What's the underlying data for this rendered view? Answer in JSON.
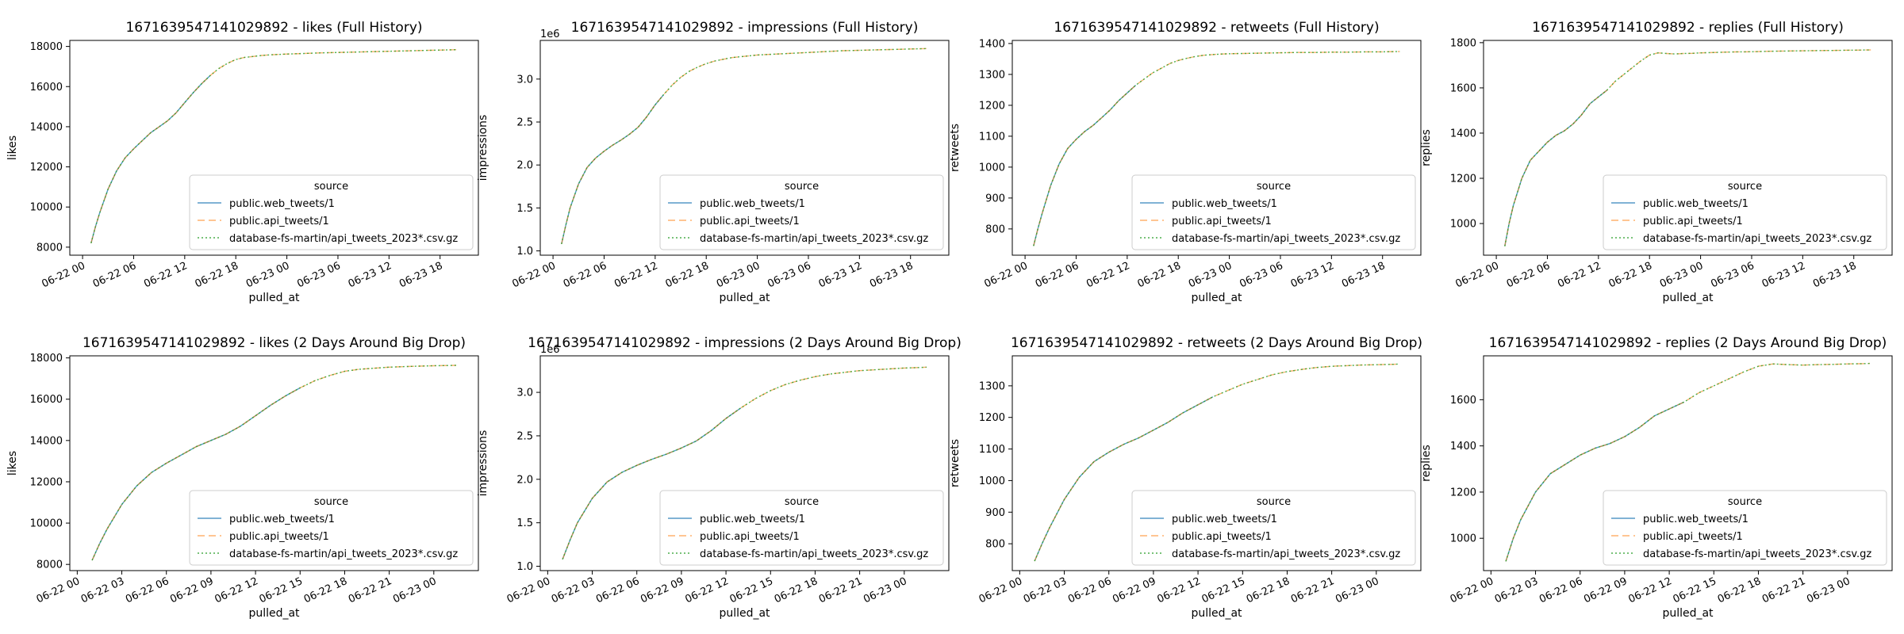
{
  "colors": {
    "web": "#1f77b4",
    "api": "#ff7f0e",
    "db": "#2ca02c"
  },
  "chart_data": [
    {
      "type": "line",
      "title": "1671639547141029892 - likes (Full History)",
      "xlabel": "pulled_at",
      "ylabel": "likes",
      "xticks": [
        "06-22 00",
        "06-22 06",
        "06-22 12",
        "06-22 18",
        "06-23 00",
        "06-23 06",
        "06-23 12",
        "06-23 18"
      ],
      "xlim": [
        -1.5,
        46.5
      ],
      "yticks": [
        8000,
        10000,
        12000,
        14000,
        16000,
        18000
      ],
      "ylim": [
        7600,
        18300
      ],
      "y_offset": "",
      "legend_title": "source",
      "legend_position": "lower right",
      "legend": [
        "public.web_tweets/1",
        "public.api_tweets/1",
        "database-fs-martin/api_tweets_2023*.csv.gz"
      ],
      "x": [
        1.0,
        1.5,
        2,
        3,
        4,
        5,
        6,
        7,
        8,
        9,
        10,
        11,
        12,
        13,
        14,
        15,
        16,
        17,
        18,
        19,
        20,
        21,
        22,
        23,
        24,
        26,
        28,
        30,
        32,
        34,
        36,
        38,
        40,
        42,
        44
      ],
      "values": [
        8200,
        9000,
        9700,
        10900,
        11800,
        12450,
        12900,
        13300,
        13700,
        14000,
        14300,
        14700,
        15200,
        15700,
        16150,
        16550,
        16900,
        17150,
        17350,
        17450,
        17500,
        17550,
        17580,
        17600,
        17620,
        17650,
        17680,
        17700,
        17720,
        17740,
        17760,
        17780,
        17800,
        17820,
        17840
      ],
      "series": [
        {
          "name": "public.web_tweets/1",
          "until": 15
        },
        {
          "name": "public.api_tweets/1",
          "until": 44
        },
        {
          "name": "database-fs-martin/api_tweets_2023*.csv.gz",
          "until": 44
        }
      ]
    },
    {
      "type": "line",
      "title": "1671639547141029892 - impressions (Full History)",
      "xlabel": "pulled_at",
      "ylabel": "impressions",
      "xticks": [
        "06-22 00",
        "06-22 06",
        "06-22 12",
        "06-22 18",
        "06-23 00",
        "06-23 06",
        "06-23 12",
        "06-23 18"
      ],
      "xlim": [
        -1.5,
        46.5
      ],
      "yticks": [
        1.0,
        1.5,
        2.0,
        2.5,
        3.0
      ],
      "ylim": [
        0.95,
        3.45
      ],
      "y_offset": "1e6",
      "legend_title": "source",
      "legend_position": "lower right",
      "legend": [
        "public.web_tweets/1",
        "public.api_tweets/1",
        "database-fs-martin/api_tweets_2023*.csv.gz"
      ],
      "x": [
        1.0,
        1.5,
        2,
        3,
        4,
        5,
        6,
        7,
        8,
        9,
        10,
        11,
        12,
        13,
        14,
        15,
        16,
        17,
        18,
        19,
        20,
        21,
        22,
        23,
        24,
        26,
        28,
        30,
        32,
        34,
        36,
        38,
        40,
        42,
        44
      ],
      "values": [
        1.08,
        1.3,
        1.5,
        1.78,
        1.97,
        2.08,
        2.16,
        2.23,
        2.29,
        2.36,
        2.44,
        2.56,
        2.7,
        2.82,
        2.93,
        3.02,
        3.09,
        3.14,
        3.18,
        3.21,
        3.23,
        3.25,
        3.26,
        3.27,
        3.28,
        3.29,
        3.3,
        3.31,
        3.32,
        3.33,
        3.335,
        3.34,
        3.345,
        3.35,
        3.355
      ],
      "series": [
        {
          "name": "public.web_tweets/1",
          "until": 13
        },
        {
          "name": "public.api_tweets/1",
          "until": 44
        },
        {
          "name": "database-fs-martin/api_tweets_2023*.csv.gz",
          "until": 44
        }
      ]
    },
    {
      "type": "line",
      "title": "1671639547141029892 - retweets (Full History)",
      "xlabel": "pulled_at",
      "ylabel": "retweets",
      "xticks": [
        "06-22 00",
        "06-22 06",
        "06-22 12",
        "06-22 18",
        "06-23 00",
        "06-23 06",
        "06-23 12",
        "06-23 18"
      ],
      "xlim": [
        -1.5,
        46.5
      ],
      "yticks": [
        800,
        900,
        1000,
        1100,
        1200,
        1300,
        1400
      ],
      "ylim": [
        715,
        1410
      ],
      "y_offset": "",
      "legend_title": "source",
      "legend_position": "lower right",
      "legend": [
        "public.web_tweets/1",
        "public.api_tweets/1",
        "database-fs-martin/api_tweets_2023*.csv.gz"
      ],
      "x": [
        1.0,
        1.5,
        2,
        3,
        4,
        5,
        6,
        7,
        8,
        9,
        10,
        11,
        12,
        13,
        14,
        15,
        16,
        17,
        18,
        19,
        20,
        21,
        22,
        23,
        24,
        26,
        28,
        30,
        32,
        34,
        36,
        38,
        40,
        42,
        44
      ],
      "values": [
        745,
        800,
        850,
        940,
        1010,
        1060,
        1090,
        1115,
        1135,
        1160,
        1185,
        1215,
        1240,
        1265,
        1285,
        1305,
        1320,
        1335,
        1345,
        1352,
        1358,
        1362,
        1364,
        1366,
        1367,
        1368,
        1369,
        1370,
        1371,
        1371,
        1372,
        1372,
        1373,
        1373,
        1374
      ],
      "series": [
        {
          "name": "public.web_tweets/1",
          "until": 13
        },
        {
          "name": "public.api_tweets/1",
          "until": 44
        },
        {
          "name": "database-fs-martin/api_tweets_2023*.csv.gz",
          "until": 44
        }
      ]
    },
    {
      "type": "line",
      "title": "1671639547141029892 - replies (Full History)",
      "xlabel": "pulled_at",
      "ylabel": "replies",
      "xticks": [
        "06-22 00",
        "06-22 06",
        "06-22 12",
        "06-22 18",
        "06-23 00",
        "06-23 06",
        "06-23 12",
        "06-23 18"
      ],
      "xlim": [
        -1.5,
        46.5
      ],
      "yticks": [
        1000,
        1200,
        1400,
        1600,
        1800
      ],
      "ylim": [
        860,
        1810
      ],
      "y_offset": "",
      "legend_title": "source",
      "legend_position": "lower right",
      "legend": [
        "public.web_tweets/1",
        "public.api_tweets/1",
        "database-fs-martin/api_tweets_2023*.csv.gz"
      ],
      "x": [
        1.0,
        1.5,
        2,
        3,
        4,
        5,
        6,
        7,
        8,
        9,
        10,
        11,
        12,
        13,
        14,
        15,
        16,
        17,
        18,
        19,
        20,
        21,
        22,
        23,
        24,
        26,
        28,
        30,
        32,
        34,
        36,
        38,
        40,
        42,
        44
      ],
      "values": [
        900,
        1000,
        1080,
        1200,
        1280,
        1320,
        1360,
        1390,
        1410,
        1440,
        1480,
        1530,
        1560,
        1590,
        1630,
        1660,
        1690,
        1720,
        1745,
        1755,
        1752,
        1750,
        1752,
        1753,
        1755,
        1757,
        1759,
        1760,
        1762,
        1763,
        1764,
        1765,
        1766,
        1767,
        1768
      ],
      "series": [
        {
          "name": "public.web_tweets/1",
          "until": 13
        },
        {
          "name": "public.api_tweets/1",
          "until": 44
        },
        {
          "name": "database-fs-martin/api_tweets_2023*.csv.gz",
          "until": 44
        }
      ]
    },
    {
      "type": "line",
      "title": "1671639547141029892 - likes (2 Days Around Big Drop)",
      "xlabel": "pulled_at",
      "ylabel": "likes",
      "xticks": [
        "06-22 00",
        "06-22 03",
        "06-22 06",
        "06-22 09",
        "06-22 12",
        "06-22 15",
        "06-22 18",
        "06-22 21",
        "06-23 00"
      ],
      "xlim": [
        -0.5,
        27.0
      ],
      "yticks": [
        8000,
        10000,
        12000,
        14000,
        16000,
        18000
      ],
      "ylim": [
        7700,
        18100
      ],
      "y_offset": "",
      "legend_title": "source",
      "legend_position": "lower right",
      "legend": [
        "public.web_tweets/1",
        "public.api_tweets/1",
        "database-fs-martin/api_tweets_2023*.csv.gz"
      ],
      "x": [
        1.0,
        1.5,
        2,
        3,
        4,
        5,
        6,
        7,
        8,
        9,
        10,
        11,
        12,
        13,
        14,
        15,
        16,
        17,
        18,
        19,
        20,
        21,
        22,
        23,
        24,
        25,
        25.5
      ],
      "values": [
        8200,
        9000,
        9700,
        10900,
        11800,
        12450,
        12900,
        13300,
        13700,
        14000,
        14300,
        14700,
        15200,
        15700,
        16150,
        16550,
        16900,
        17150,
        17350,
        17450,
        17500,
        17550,
        17580,
        17600,
        17620,
        17630,
        17640
      ],
      "series": [
        {
          "name": "public.web_tweets/1",
          "until": 15
        },
        {
          "name": "public.api_tweets/1",
          "until": 25.5
        },
        {
          "name": "database-fs-martin/api_tweets_2023*.csv.gz",
          "until": 25.5
        }
      ]
    },
    {
      "type": "line",
      "title": "1671639547141029892 - impressions (2 Days Around Big Drop)",
      "xlabel": "pulled_at",
      "ylabel": "impressions",
      "xticks": [
        "06-22 00",
        "06-22 03",
        "06-22 06",
        "06-22 09",
        "06-22 12",
        "06-22 15",
        "06-22 18",
        "06-22 21",
        "06-23 00"
      ],
      "xlim": [
        -0.5,
        27.0
      ],
      "yticks": [
        1.0,
        1.5,
        2.0,
        2.5,
        3.0
      ],
      "ylim": [
        0.95,
        3.42
      ],
      "y_offset": "1e6",
      "legend_title": "source",
      "legend_position": "lower right",
      "legend": [
        "public.web_tweets/1",
        "public.api_tweets/1",
        "database-fs-martin/api_tweets_2023*.csv.gz"
      ],
      "x": [
        1.0,
        1.5,
        2,
        3,
        4,
        5,
        6,
        7,
        8,
        9,
        10,
        11,
        12,
        13,
        14,
        15,
        16,
        17,
        18,
        19,
        20,
        21,
        22,
        23,
        24,
        25,
        25.5
      ],
      "values": [
        1.08,
        1.3,
        1.5,
        1.78,
        1.97,
        2.08,
        2.16,
        2.23,
        2.29,
        2.36,
        2.44,
        2.56,
        2.7,
        2.82,
        2.93,
        3.02,
        3.09,
        3.14,
        3.18,
        3.21,
        3.23,
        3.25,
        3.26,
        3.27,
        3.28,
        3.285,
        3.29
      ],
      "series": [
        {
          "name": "public.web_tweets/1",
          "until": 13
        },
        {
          "name": "public.api_tweets/1",
          "until": 25.5
        },
        {
          "name": "database-fs-martin/api_tweets_2023*.csv.gz",
          "until": 25.5
        }
      ]
    },
    {
      "type": "line",
      "title": "1671639547141029892 - retweets (2 Days Around Big Drop)",
      "xlabel": "pulled_at",
      "ylabel": "retweets",
      "xticks": [
        "06-22 00",
        "06-22 03",
        "06-22 06",
        "06-22 09",
        "06-22 12",
        "06-22 15",
        "06-22 18",
        "06-22 21",
        "06-23 00"
      ],
      "xlim": [
        -0.5,
        27.0
      ],
      "yticks": [
        800,
        900,
        1000,
        1100,
        1200,
        1300
      ],
      "ylim": [
        715,
        1395
      ],
      "y_offset": "",
      "legend_title": "source",
      "legend_position": "lower right",
      "legend": [
        "public.web_tweets/1",
        "public.api_tweets/1",
        "database-fs-martin/api_tweets_2023*.csv.gz"
      ],
      "x": [
        1.0,
        1.5,
        2,
        3,
        4,
        5,
        6,
        7,
        8,
        9,
        10,
        11,
        12,
        13,
        14,
        15,
        16,
        17,
        18,
        19,
        20,
        21,
        22,
        23,
        24,
        25,
        25.5
      ],
      "values": [
        745,
        800,
        850,
        940,
        1010,
        1060,
        1090,
        1115,
        1135,
        1160,
        1185,
        1215,
        1240,
        1265,
        1285,
        1305,
        1320,
        1335,
        1345,
        1352,
        1358,
        1362,
        1364,
        1366,
        1367,
        1368,
        1369
      ],
      "series": [
        {
          "name": "public.web_tweets/1",
          "until": 13
        },
        {
          "name": "public.api_tweets/1",
          "until": 25.5
        },
        {
          "name": "database-fs-martin/api_tweets_2023*.csv.gz",
          "until": 25.5
        }
      ]
    },
    {
      "type": "line",
      "title": "1671639547141029892 - replies (2 Days Around Big Drop)",
      "xlabel": "pulled_at",
      "ylabel": "replies",
      "xticks": [
        "06-22 00",
        "06-22 03",
        "06-22 06",
        "06-22 09",
        "06-22 12",
        "06-22 15",
        "06-22 18",
        "06-22 21",
        "06-23 00"
      ],
      "xlim": [
        -0.5,
        27.0
      ],
      "yticks": [
        1000,
        1200,
        1400,
        1600
      ],
      "ylim": [
        860,
        1790
      ],
      "y_offset": "",
      "legend_title": "source",
      "legend_position": "lower right",
      "legend": [
        "public.web_tweets/1",
        "public.api_tweets/1",
        "database-fs-martin/api_tweets_2023*.csv.gz"
      ],
      "x": [
        1.0,
        1.5,
        2,
        3,
        4,
        5,
        6,
        7,
        8,
        9,
        10,
        11,
        12,
        13,
        14,
        15,
        16,
        17,
        18,
        19,
        20,
        21,
        22,
        23,
        24,
        25,
        25.5
      ],
      "values": [
        900,
        1000,
        1080,
        1200,
        1280,
        1320,
        1360,
        1390,
        1410,
        1440,
        1480,
        1530,
        1560,
        1590,
        1630,
        1660,
        1690,
        1720,
        1745,
        1755,
        1752,
        1750,
        1752,
        1753,
        1755,
        1756,
        1757
      ],
      "series": [
        {
          "name": "public.web_tweets/1",
          "until": 13
        },
        {
          "name": "public.api_tweets/1",
          "until": 25.5
        },
        {
          "name": "database-fs-martin/api_tweets_2023*.csv.gz",
          "until": 25.5
        }
      ]
    }
  ]
}
